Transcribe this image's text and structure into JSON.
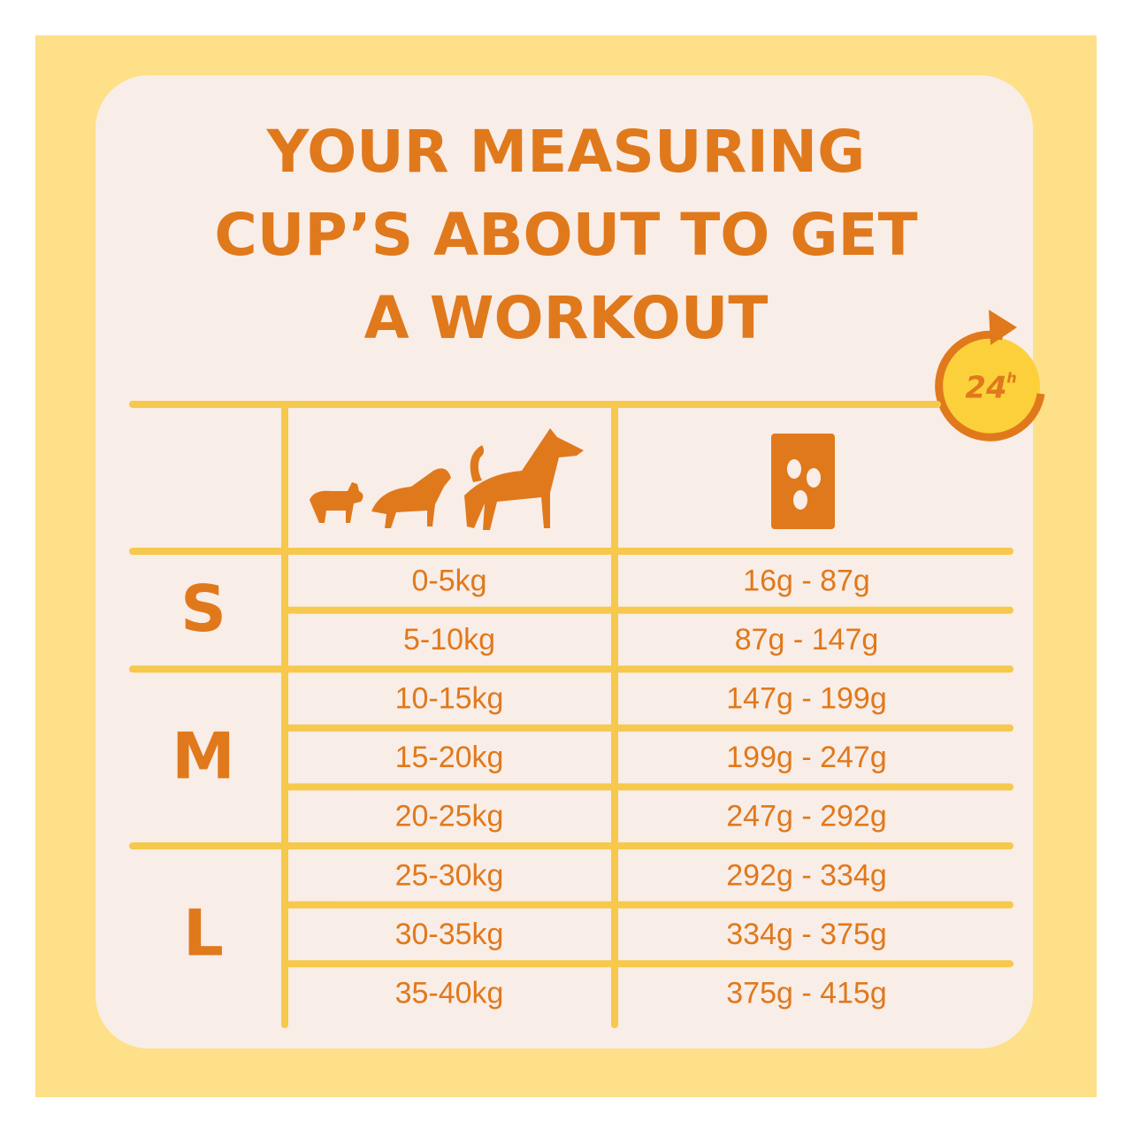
{
  "title": [
    "YOUR MEASURING",
    "CUP’S ABOUT TO GET",
    "A WORKOUT"
  ],
  "badge": {
    "number": "24",
    "unit": "h"
  },
  "table": {
    "groups": [
      {
        "size": "S",
        "rows": [
          [
            "0-5kg",
            "16g - 87g"
          ],
          [
            "5-10kg",
            "87g - 147g"
          ]
        ]
      },
      {
        "size": "M",
        "rows": [
          [
            "10-15kg",
            "147g - 199g"
          ],
          [
            "15-20kg",
            "199g - 247g"
          ],
          [
            "20-25kg",
            "247g - 292g"
          ]
        ]
      },
      {
        "size": "L",
        "rows": [
          [
            "25-30kg",
            "292g - 334g"
          ],
          [
            "30-35kg",
            "334g - 375g"
          ],
          [
            "35-40kg",
            "375g - 415g"
          ]
        ]
      }
    ]
  }
}
